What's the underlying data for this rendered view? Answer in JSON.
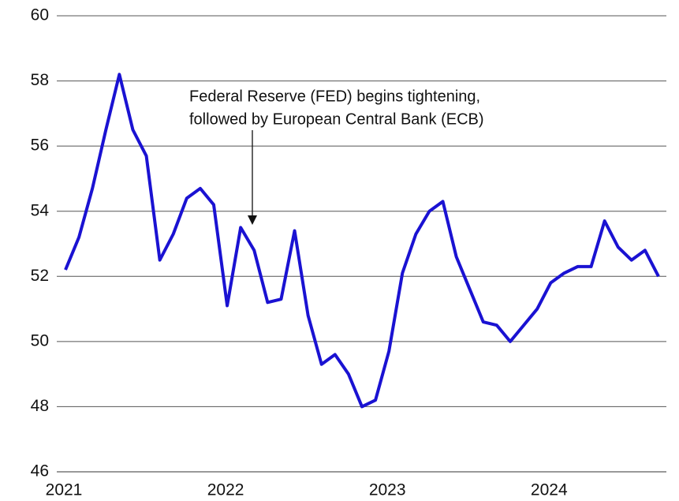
{
  "chart_data": {
    "type": "line",
    "categories": [
      "2021",
      null,
      null,
      null,
      null,
      null,
      null,
      null,
      null,
      null,
      null,
      null,
      "2022",
      null,
      null,
      null,
      null,
      null,
      null,
      null,
      null,
      null,
      null,
      null,
      "2023",
      null,
      null,
      null,
      null,
      null,
      null,
      null,
      null,
      null,
      null,
      null,
      "2024",
      null,
      null,
      null,
      null,
      null,
      null,
      null,
      null
    ],
    "series": [
      {
        "color": "#1a12d2",
        "values": [
          52.2,
          53.2,
          54.7,
          56.5,
          58.2,
          56.5,
          55.7,
          52.5,
          53.3,
          54.4,
          54.7,
          54.2,
          51.1,
          53.5,
          52.8,
          51.2,
          51.3,
          53.4,
          50.8,
          49.3,
          49.6,
          49.0,
          48.0,
          48.2,
          49.7,
          52.1,
          53.3,
          54.0,
          54.3,
          52.6,
          51.6,
          50.6,
          50.5,
          50.0,
          50.5,
          51.0,
          51.8,
          52.1,
          52.3,
          52.3,
          53.7,
          52.9,
          52.5,
          52.8,
          52.0
        ]
      }
    ],
    "ylim": [
      46,
      60
    ],
    "yticks": [
      46,
      48,
      50,
      52,
      54,
      56,
      58,
      60
    ],
    "grid": true,
    "annotation": [
      "Federal Reserve (FED) begins tightening,",
      "followed by European Central Bank (ECB)"
    ]
  }
}
